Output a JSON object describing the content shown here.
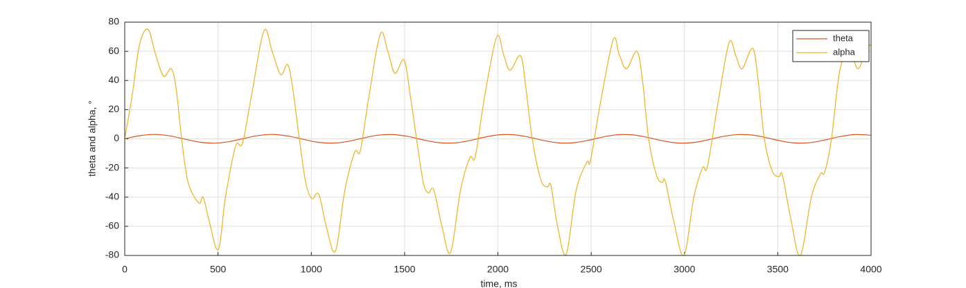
{
  "chart_data": {
    "type": "line",
    "xlabel": "time, ms",
    "ylabel": "theta and alpha, °",
    "xlim": [
      0,
      4000
    ],
    "xticks": [
      0,
      500,
      1000,
      1500,
      2000,
      2500,
      3000,
      3500,
      4000
    ],
    "ylim": [
      -80,
      80
    ],
    "yticks": [
      -80,
      -60,
      -40,
      -20,
      0,
      20,
      40,
      60,
      80
    ],
    "grid": true,
    "legend": "upper right",
    "series": [
      {
        "name": "theta",
        "color": "#D95319",
        "x": [
          0,
          80,
          160,
          240,
          320,
          400,
          480,
          560,
          640,
          720,
          800,
          880,
          960,
          1040,
          1120,
          1200,
          1280,
          1360,
          1440,
          1520,
          1600,
          1680,
          1760,
          1840,
          1920,
          2000,
          2080,
          2160,
          2240,
          2320,
          2400,
          2480,
          2560,
          2640,
          2720,
          2800,
          2880,
          2960,
          3040,
          3120,
          3200,
          3280,
          3360,
          3440,
          3520,
          3600,
          3680,
          3760,
          3840,
          3920,
          4000
        ],
        "values": [
          0,
          2.15,
          3.0,
          2.04,
          -0.15,
          -2.25,
          -2.99,
          -1.93,
          0.3,
          2.34,
          2.98,
          1.81,
          -0.45,
          -2.44,
          -2.95,
          -1.69,
          0.59,
          2.52,
          2.92,
          1.56,
          -0.74,
          -2.6,
          -2.89,
          -1.44,
          0.88,
          2.67,
          2.84,
          1.3,
          -1.03,
          -2.73,
          -2.79,
          -1.17,
          1.17,
          2.79,
          2.73,
          1.03,
          -1.3,
          -2.84,
          -2.67,
          -0.88,
          1.44,
          2.89,
          2.6,
          0.74,
          -1.56,
          -2.92,
          -2.52,
          -0.59,
          1.69,
          2.95,
          2.44
        ]
      },
      {
        "name": "alpha",
        "color": "#EDB120",
        "x": [
          0,
          40,
          80,
          125,
          165,
          208,
          249,
          275,
          305,
          340,
          397,
          420,
          450,
          501,
          540,
          594,
          631,
          680,
          746,
          790,
          836,
          873,
          900,
          936,
          970,
          1003,
          1040,
          1080,
          1129,
          1180,
          1233,
          1263,
          1310,
          1370,
          1410,
          1448,
          1497,
          1530,
          1564,
          1600,
          1627,
          1656,
          1700,
          1746,
          1800,
          1850,
          1879,
          1930,
          1994,
          2030,
          2065,
          2121,
          2150,
          2184,
          2230,
          2265,
          2284,
          2320,
          2366,
          2420,
          2477,
          2496,
          2550,
          2618,
          2650,
          2689,
          2745,
          2775,
          2808,
          2850,
          2879,
          2897,
          2940,
          2997,
          3050,
          3097,
          3123,
          3180,
          3239,
          3275,
          3309,
          3365,
          3395,
          3428,
          3470,
          3506,
          3525,
          3570,
          3621,
          3680,
          3729,
          3751,
          3788,
          3830,
          3880,
          3929,
          3970,
          4000
        ],
        "values": [
          0,
          30,
          65,
          75,
          58,
          43,
          48,
          35,
          0,
          -30,
          -44,
          -40,
          -55,
          -76,
          -40,
          -5,
          -3,
          30,
          74,
          60,
          44,
          51,
          35,
          0,
          -30,
          -41,
          -38,
          -60,
          -77,
          -35,
          -9,
          -8,
          30,
          72,
          60,
          45,
          54,
          30,
          0,
          -30,
          -37,
          -35,
          -60,
          -78,
          -35,
          -13,
          -12,
          30,
          70,
          58,
          47,
          57,
          35,
          0,
          -28,
          -33,
          -32,
          -60,
          -79,
          -35,
          -16,
          -15,
          25,
          68,
          58,
          48,
          60,
          40,
          0,
          -25,
          -30,
          -29,
          -55,
          -80,
          -40,
          -20,
          -19,
          25,
          66,
          57,
          48,
          62,
          40,
          0,
          -22,
          -26,
          -25,
          -55,
          -80,
          -40,
          -24,
          -23,
          0,
          45,
          62,
          48,
          60,
          65
        ]
      }
    ]
  }
}
